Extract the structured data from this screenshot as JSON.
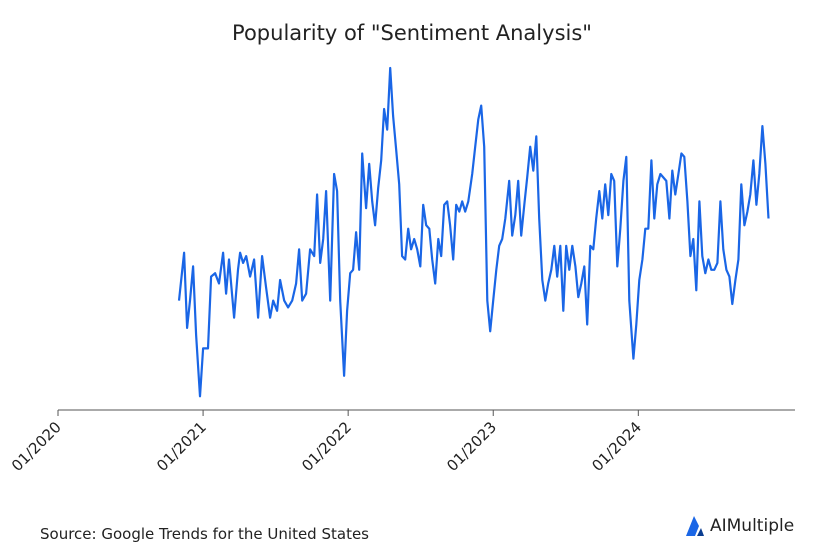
{
  "chart_data": {
    "type": "line",
    "title": "Popularity of \"Sentiment Analysis\"",
    "source": "Source: Google Trends for the United States",
    "brand": "AIMultiple",
    "color": "#1a66e6",
    "xlim": [
      2020,
      2025.08
    ],
    "ylim": [
      0,
      100
    ],
    "xticks": [
      {
        "value": 2020,
        "label": "01/2020"
      },
      {
        "value": 2021,
        "label": "01/2021"
      },
      {
        "value": 2022,
        "label": "01/2022"
      },
      {
        "value": 2023,
        "label": "01/2023"
      },
      {
        "value": 2024,
        "label": "01/2024"
      }
    ],
    "x": [
      2020.834,
      2020.869,
      2020.89,
      2020.91,
      2020.931,
      2020.952,
      2020.979,
      2021.0,
      2021.034,
      2021.055,
      2021.083,
      2021.11,
      2021.138,
      2021.159,
      2021.179,
      2021.214,
      2021.241,
      2021.255,
      2021.276,
      2021.297,
      2021.324,
      2021.352,
      2021.379,
      2021.407,
      2021.434,
      2021.462,
      2021.483,
      2021.51,
      2021.531,
      2021.559,
      2021.586,
      2021.614,
      2021.641,
      2021.662,
      2021.683,
      2021.71,
      2021.738,
      2021.766,
      2021.786,
      2021.807,
      2021.828,
      2021.848,
      2021.876,
      2021.903,
      2021.924,
      2021.945,
      2021.972,
      2021.993,
      2022.014,
      2022.034,
      2022.055,
      2022.076,
      2022.097,
      2022.124,
      2022.145,
      2022.166,
      2022.186,
      2022.207,
      2022.228,
      2022.248,
      2022.269,
      2022.29,
      2022.31,
      2022.331,
      2022.352,
      2022.372,
      2022.393,
      2022.414,
      2022.434,
      2022.455,
      2022.476,
      2022.497,
      2022.517,
      2022.538,
      2022.559,
      2022.579,
      2022.6,
      2022.621,
      2022.641,
      2022.662,
      2022.683,
      2022.703,
      2022.724,
      2022.745,
      2022.766,
      2022.786,
      2022.807,
      2022.828,
      2022.855,
      2022.876,
      2022.897,
      2022.917,
      2022.938,
      2022.959,
      2022.979,
      2023.0,
      2023.021,
      2023.041,
      2023.062,
      2023.083,
      2023.11,
      2023.131,
      2023.152,
      2023.172,
      2023.193,
      2023.214,
      2023.234,
      2023.255,
      2023.276,
      2023.297,
      2023.317,
      2023.338,
      2023.359,
      2023.379,
      2023.4,
      2023.421,
      2023.441,
      2023.462,
      2023.483,
      2023.503,
      2023.524,
      2023.545,
      2023.566,
      2023.586,
      2023.607,
      2023.628,
      2023.648,
      2023.669,
      2023.69,
      2023.71,
      2023.731,
      2023.752,
      2023.772,
      2023.793,
      2023.814,
      2023.834,
      2023.855,
      2023.876,
      2023.897,
      2023.917,
      2023.938,
      2023.966,
      2023.986,
      2024.007,
      2024.028,
      2024.048,
      2024.069,
      2024.09,
      2024.11,
      2024.131,
      2024.152,
      2024.172,
      2024.193,
      2024.214,
      2024.234,
      2024.255,
      2024.276,
      2024.297,
      2024.317,
      2024.338,
      2024.359,
      2024.379,
      2024.4,
      2024.421,
      2024.441,
      2024.462,
      2024.483,
      2024.503,
      2024.524,
      2024.545,
      2024.566,
      2024.586,
      2024.607,
      2024.628,
      2024.648,
      2024.669,
      2024.69,
      2024.71,
      2024.731,
      2024.752,
      2024.772,
      2024.793,
      2024.814,
      2024.834,
      2024.855,
      2024.876,
      2024.897
    ],
    "values": [
      32,
      46,
      24,
      32,
      42,
      22,
      4,
      18,
      18,
      39,
      40,
      37,
      46,
      34,
      44,
      27,
      41,
      46,
      43,
      45,
      39,
      44,
      27,
      45,
      36,
      27,
      32,
      29,
      38,
      32,
      30,
      32,
      37,
      47,
      32,
      34,
      47,
      45,
      63,
      43,
      50,
      64,
      32,
      69,
      64,
      32,
      10,
      29,
      40,
      41,
      52,
      41,
      75,
      59,
      72,
      61,
      54,
      65,
      73,
      88,
      82,
      100,
      86,
      76,
      66,
      45,
      44,
      53,
      47,
      50,
      47,
      42,
      60,
      54,
      53,
      44,
      37,
      50,
      45,
      60,
      61,
      54,
      44,
      60,
      58,
      61,
      58,
      61,
      69,
      77,
      85,
      89,
      77,
      32,
      23,
      32,
      41,
      48,
      50,
      56,
      67,
      51,
      57,
      67,
      51,
      60,
      68,
      77,
      70,
      80,
      56,
      38,
      32,
      37,
      41,
      48,
      39,
      48,
      29,
      48,
      41,
      48,
      42,
      33,
      37,
      42,
      25,
      48,
      47,
      56,
      64,
      56,
      66,
      57,
      69,
      67,
      42,
      53,
      67,
      74,
      32,
      15,
      25,
      38,
      44,
      53,
      53,
      73,
      56,
      66,
      69,
      68,
      67,
      56,
      70,
      63,
      69,
      75,
      74,
      61,
      45,
      50,
      35,
      61,
      45,
      40,
      44,
      41,
      41,
      43,
      61,
      47,
      41,
      39,
      31,
      38,
      44,
      66,
      54,
      58,
      63,
      73,
      60,
      69,
      83,
      72,
      56
    ]
  }
}
